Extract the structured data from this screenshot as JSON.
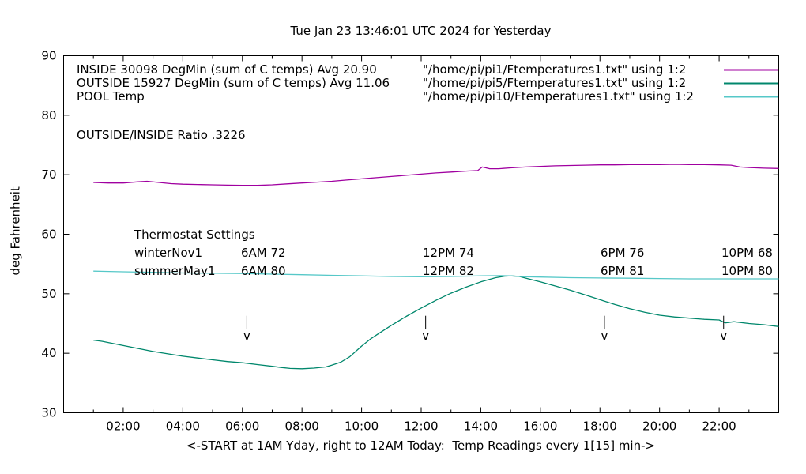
{
  "chart_data": {
    "type": "line",
    "title": "Tue Jan 23 13:46:01 UTC 2024 for Yesterday",
    "xlabel": "<-START at 1AM Yday, right to 12AM Today:  Temp Readings every 1[15] min->",
    "ylabel": "deg Fahrenheit",
    "xlim": [
      0,
      24
    ],
    "ylim": [
      30,
      90
    ],
    "grid": false,
    "legend_position": "top-left-inside",
    "x_ticks": [
      {
        "value": 2,
        "label": "02:00"
      },
      {
        "value": 4,
        "label": "04:00"
      },
      {
        "value": 6,
        "label": "06:00"
      },
      {
        "value": 8,
        "label": "08:00"
      },
      {
        "value": 10,
        "label": "10:00"
      },
      {
        "value": 12,
        "label": "12:00"
      },
      {
        "value": 14,
        "label": "14:00"
      },
      {
        "value": 16,
        "label": "16:00"
      },
      {
        "value": 18,
        "label": "18:00"
      },
      {
        "value": 20,
        "label": "20:00"
      },
      {
        "value": 22,
        "label": "22:00"
      }
    ],
    "y_ticks": [
      {
        "value": 30,
        "label": "30"
      },
      {
        "value": 40,
        "label": "40"
      },
      {
        "value": 50,
        "label": "50"
      },
      {
        "value": 60,
        "label": "60"
      },
      {
        "value": 70,
        "label": "70"
      },
      {
        "value": 80,
        "label": "80"
      },
      {
        "value": 90,
        "label": "90"
      }
    ],
    "series": [
      {
        "name": "INSIDE",
        "label": "INSIDE 30098 DegMin (sum of C temps) Avg 20.90",
        "file": "\"/home/pi/pi1/Ftemperatures1.txt\" using 1:2",
        "color": "#a000a0",
        "points": [
          [
            1,
            68.7
          ],
          [
            1.5,
            68.6
          ],
          [
            2,
            68.6
          ],
          [
            2.5,
            68.8
          ],
          [
            2.8,
            68.9
          ],
          [
            3.2,
            68.7
          ],
          [
            3.6,
            68.5
          ],
          [
            4,
            68.4
          ],
          [
            4.5,
            68.35
          ],
          [
            5,
            68.3
          ],
          [
            5.5,
            68.25
          ],
          [
            6,
            68.2
          ],
          [
            6.5,
            68.2
          ],
          [
            7,
            68.3
          ],
          [
            7.5,
            68.45
          ],
          [
            8,
            68.6
          ],
          [
            8.5,
            68.75
          ],
          [
            9,
            68.9
          ],
          [
            9.5,
            69.1
          ],
          [
            10,
            69.3
          ],
          [
            10.5,
            69.5
          ],
          [
            11,
            69.7
          ],
          [
            11.5,
            69.9
          ],
          [
            12,
            70.1
          ],
          [
            12.5,
            70.3
          ],
          [
            13,
            70.45
          ],
          [
            13.5,
            70.6
          ],
          [
            13.9,
            70.7
          ],
          [
            14.05,
            71.3
          ],
          [
            14.3,
            71.0
          ],
          [
            14.6,
            71.0
          ],
          [
            15,
            71.15
          ],
          [
            15.5,
            71.3
          ],
          [
            16,
            71.4
          ],
          [
            16.5,
            71.5
          ],
          [
            17,
            71.55
          ],
          [
            17.5,
            71.6
          ],
          [
            18,
            71.65
          ],
          [
            18.5,
            71.65
          ],
          [
            19,
            71.7
          ],
          [
            19.5,
            71.7
          ],
          [
            20,
            71.7
          ],
          [
            20.5,
            71.75
          ],
          [
            21,
            71.7
          ],
          [
            21.5,
            71.7
          ],
          [
            22,
            71.65
          ],
          [
            22.4,
            71.6
          ],
          [
            22.7,
            71.3
          ],
          [
            23,
            71.2
          ],
          [
            23.5,
            71.1
          ],
          [
            24,
            71.05
          ]
        ]
      },
      {
        "name": "OUTSIDE",
        "label": "OUTSIDE 15927 DegMin (sum of C temps) Avg 11.06",
        "file": "\"/home/pi/pi5/Ftemperatures1.txt\" using 1:2",
        "color": "#00876c",
        "points": [
          [
            1,
            42.2
          ],
          [
            1.3,
            42.0
          ],
          [
            1.6,
            41.7
          ],
          [
            2,
            41.3
          ],
          [
            2.5,
            40.8
          ],
          [
            3,
            40.3
          ],
          [
            3.5,
            39.9
          ],
          [
            4,
            39.5
          ],
          [
            4.5,
            39.2
          ],
          [
            5,
            38.9
          ],
          [
            5.5,
            38.6
          ],
          [
            6,
            38.4
          ],
          [
            6.5,
            38.1
          ],
          [
            7,
            37.8
          ],
          [
            7.3,
            37.6
          ],
          [
            7.6,
            37.45
          ],
          [
            8,
            37.4
          ],
          [
            8.4,
            37.5
          ],
          [
            8.8,
            37.7
          ],
          [
            9,
            38.0
          ],
          [
            9.3,
            38.5
          ],
          [
            9.6,
            39.4
          ],
          [
            10,
            41.2
          ],
          [
            10.3,
            42.4
          ],
          [
            10.6,
            43.4
          ],
          [
            11,
            44.7
          ],
          [
            11.5,
            46.2
          ],
          [
            12,
            47.6
          ],
          [
            12.5,
            48.9
          ],
          [
            13,
            50.1
          ],
          [
            13.5,
            51.1
          ],
          [
            14,
            52.0
          ],
          [
            14.5,
            52.7
          ],
          [
            14.8,
            52.95
          ],
          [
            15,
            53.0
          ],
          [
            15.3,
            52.9
          ],
          [
            15.6,
            52.5
          ],
          [
            16,
            52.0
          ],
          [
            16.5,
            51.3
          ],
          [
            17,
            50.6
          ],
          [
            17.5,
            49.8
          ],
          [
            18,
            49.0
          ],
          [
            18.5,
            48.2
          ],
          [
            19,
            47.5
          ],
          [
            19.5,
            46.9
          ],
          [
            20,
            46.4
          ],
          [
            20.5,
            46.1
          ],
          [
            21,
            45.9
          ],
          [
            21.5,
            45.7
          ],
          [
            22,
            45.6
          ],
          [
            22.2,
            45.1
          ],
          [
            22.5,
            45.3
          ],
          [
            23,
            45.0
          ],
          [
            23.5,
            44.8
          ],
          [
            24,
            44.5
          ]
        ]
      },
      {
        "name": "POOL",
        "label": "POOL Temp",
        "file": "\"/home/pi/pi10/Ftemperatures1.txt\" using 1:2",
        "color": "#56c8c8",
        "points": [
          [
            1,
            53.8
          ],
          [
            2,
            53.7
          ],
          [
            3,
            53.6
          ],
          [
            4,
            53.5
          ],
          [
            5,
            53.45
          ],
          [
            6,
            53.4
          ],
          [
            7,
            53.3
          ],
          [
            8,
            53.2
          ],
          [
            9,
            53.1
          ],
          [
            10,
            53.0
          ],
          [
            11,
            52.9
          ],
          [
            12,
            52.85
          ],
          [
            13,
            52.9
          ],
          [
            14,
            53.0
          ],
          [
            14.7,
            53.05
          ],
          [
            15,
            53.0
          ],
          [
            15.5,
            52.85
          ],
          [
            16,
            52.8
          ],
          [
            17,
            52.7
          ],
          [
            18,
            52.65
          ],
          [
            19,
            52.6
          ],
          [
            20,
            52.55
          ],
          [
            21,
            52.5
          ],
          [
            22,
            52.5
          ],
          [
            23,
            52.5
          ],
          [
            24,
            52.5
          ]
        ]
      }
    ],
    "markers": {
      "times": [
        6.15,
        12.15,
        18.15,
        22.15
      ],
      "top_f": 46.3,
      "bottom_f": 44.0,
      "glyph": "v",
      "glyph_baseline_f": 42.3,
      "color": "#000000"
    }
  },
  "annotations": {
    "ratio": "OUTSIDE/INSIDE Ratio .3226"
  },
  "thermostat": {
    "heading": "Thermostat Settings",
    "rows": [
      {
        "season": "winterNov1",
        "cells": [
          "6AM 72",
          "12PM 74",
          "6PM 76",
          "10PM 68"
        ]
      },
      {
        "season": "summerMay1",
        "cells": [
          "6AM 80",
          "12PM 82",
          "6PM 81",
          "10PM 80"
        ]
      }
    ]
  }
}
